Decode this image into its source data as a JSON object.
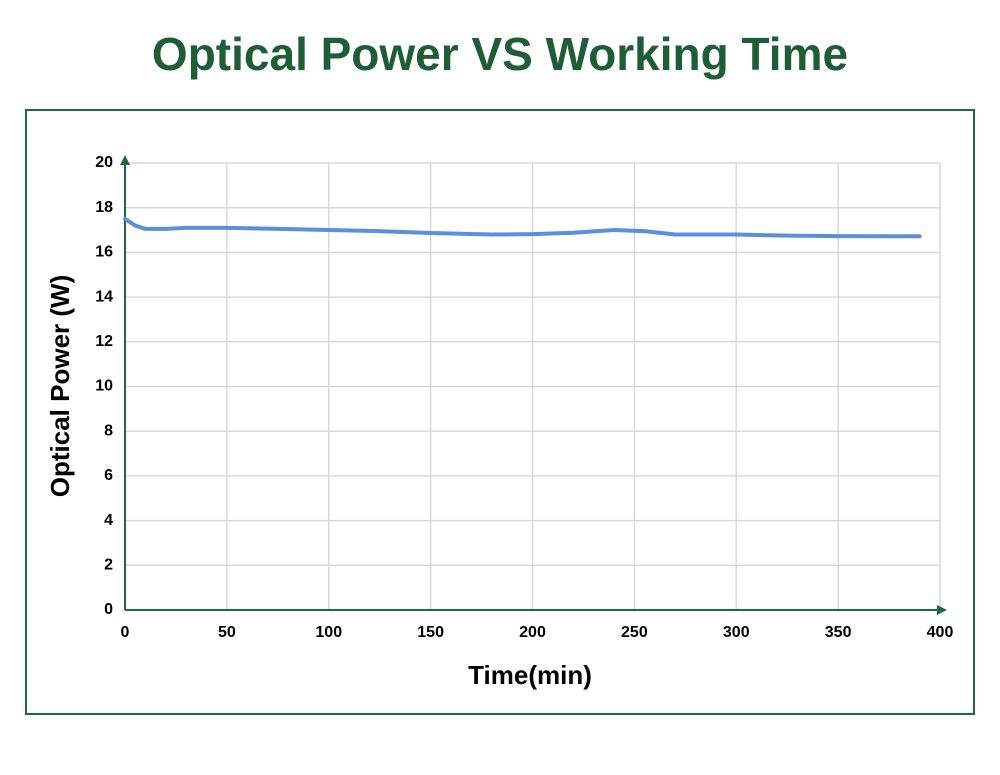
{
  "chart_data": {
    "type": "line",
    "title": "Optical Power VS Working Time",
    "x_label": "Time(min)",
    "y_label": "Optical Power (W)",
    "x": [
      0,
      5,
      10,
      20,
      30,
      50,
      75,
      100,
      125,
      150,
      180,
      200,
      220,
      240,
      255,
      270,
      300,
      325,
      350,
      375,
      390
    ],
    "series": [
      {
        "name": "Optical Power",
        "color": "#5b8fdb",
        "values": [
          17.5,
          17.2,
          17.05,
          17.05,
          17.1,
          17.1,
          17.05,
          17.0,
          16.95,
          16.87,
          16.8,
          16.82,
          16.88,
          17.0,
          16.95,
          16.8,
          16.8,
          16.75,
          16.73,
          16.72,
          16.72
        ]
      }
    ],
    "xlim": [
      0,
      400
    ],
    "xticks": [
      0,
      50,
      100,
      150,
      200,
      250,
      300,
      350,
      400
    ],
    "ylim": [
      0,
      20
    ],
    "yticks": [
      0,
      2,
      4,
      6,
      8,
      10,
      12,
      14,
      16,
      18,
      20
    ],
    "grid": true
  }
}
